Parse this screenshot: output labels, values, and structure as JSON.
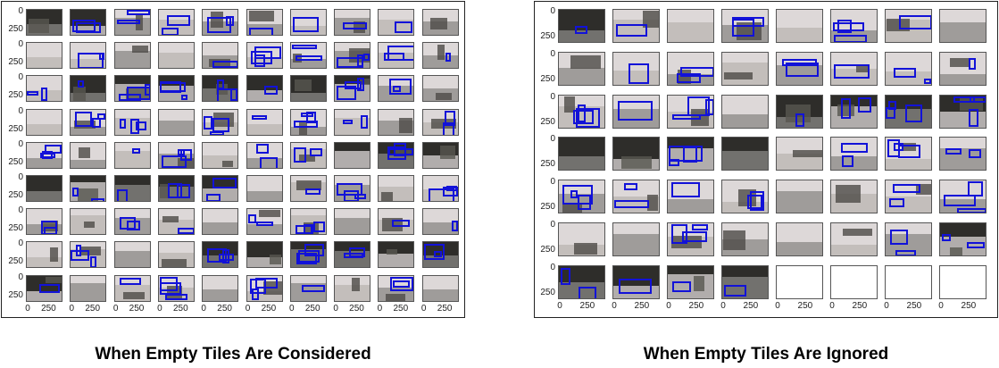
{
  "colors": {
    "light": "#ddd8d8",
    "dark": "#2e2d2a",
    "gray": "#8a8886",
    "box": "#1212d8"
  },
  "icons": [
    "image-tile"
  ],
  "panels": [
    {
      "id": "left",
      "cols": 10,
      "rows": 9,
      "y_ticks": [
        "0",
        "250"
      ],
      "x_ticks": [
        "0",
        "250"
      ],
      "empty_tiles": [],
      "caption": "When Empty Tiles Are Considered"
    },
    {
      "id": "right",
      "cols": 8,
      "rows": 7,
      "y_ticks": [
        "0",
        "250"
      ],
      "x_ticks": [
        "0",
        "250"
      ],
      "empty_tiles": [
        52,
        53,
        54,
        55
      ],
      "caption": "When Empty Tiles Are Ignored"
    }
  ]
}
